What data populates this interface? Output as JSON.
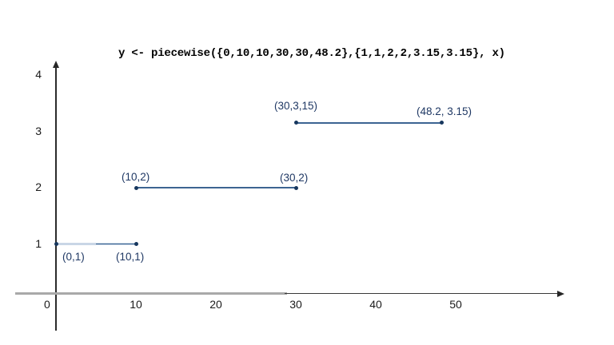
{
  "colors": {
    "label_navy": "#1f3864",
    "line_navy": "#3c6492",
    "line_light_blue": "#c9d6e6",
    "dot_navy": "#17375e",
    "axis_gray": "#a9a9a9",
    "axis_dark": "#3a3a3a",
    "tick_text": "#1a1a1a"
  },
  "chart_data": {
    "type": "line",
    "subtype": "piecewise-step-segments",
    "title": "y <- piecewise({0,10,10,30,30,48.2},{1,1,2,2,3.15,3.15}, x)",
    "xlabel": "",
    "ylabel": "",
    "origin_label": "0",
    "x_ticks": [
      {
        "value": 10,
        "label": "10"
      },
      {
        "value": 20,
        "label": "20"
      },
      {
        "value": 30,
        "label": "30"
      },
      {
        "value": 40,
        "label": "40"
      },
      {
        "value": 50,
        "label": "50"
      }
    ],
    "y_ticks": [
      {
        "value": 1,
        "label": "1"
      },
      {
        "value": 2,
        "label": "2"
      },
      {
        "value": 3,
        "label": "3"
      },
      {
        "value": 4,
        "label": "4"
      }
    ],
    "xlim": [
      0,
      63
    ],
    "ylim": [
      0,
      4.3
    ],
    "grid": false,
    "legend": false,
    "segments": [
      {
        "name": "segment-1",
        "points": [
          {
            "x": 0,
            "y": 1,
            "label": "(0,1)"
          },
          {
            "x": 10,
            "y": 1,
            "label": "(10,1)"
          }
        ]
      },
      {
        "name": "segment-2",
        "points": [
          {
            "x": 10,
            "y": 2,
            "label": "(10,2)"
          },
          {
            "x": 30,
            "y": 2,
            "label": "(30,2)"
          }
        ]
      },
      {
        "name": "segment-3",
        "points": [
          {
            "x": 30,
            "y": 3.15,
            "label": "(30,3,15)"
          },
          {
            "x": 48.2,
            "y": 3.15,
            "label": "(48.2, 3.15)"
          }
        ]
      }
    ]
  }
}
